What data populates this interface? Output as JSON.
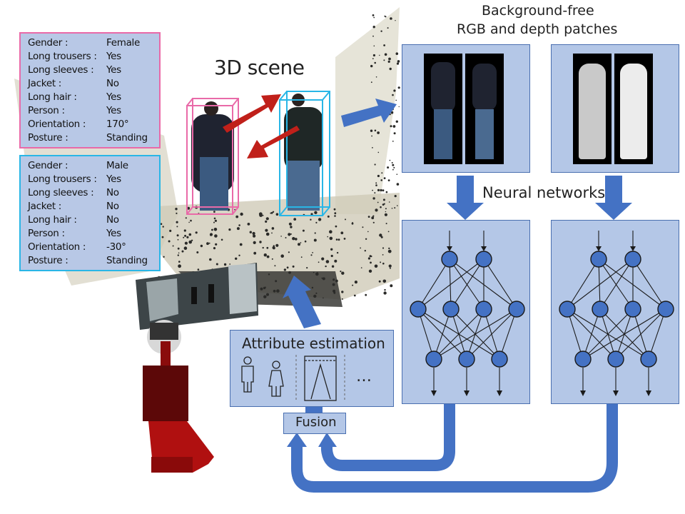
{
  "scene_title": "3D scene",
  "patches_title": {
    "line1": "Background-free",
    "line2": "RGB and depth patches"
  },
  "neural_label": "Neural networks",
  "attribute_box": {
    "title": "Attribute estimation",
    "ellipsis": "…"
  },
  "fusion_label": "Fusion",
  "person_pink": {
    "border_color": "#e96aa8",
    "rows": [
      {
        "key": "Gender :",
        "value": "Female"
      },
      {
        "key": "Long trousers :",
        "value": "Yes"
      },
      {
        "key": "Long sleeves :",
        "value": "Yes"
      },
      {
        "key": "Jacket :",
        "value": "No"
      },
      {
        "key": "Long hair :",
        "value": "Yes"
      },
      {
        "key": "Person :",
        "value": "Yes"
      },
      {
        "key": "Orientation :",
        "value": "170°"
      },
      {
        "key": "Posture :",
        "value": "Standing"
      }
    ]
  },
  "person_blue": {
    "border_color": "#29b6e6",
    "rows": [
      {
        "key": "Gender :",
        "value": "Male"
      },
      {
        "key": "Long trousers :",
        "value": "Yes"
      },
      {
        "key": "Long sleeves :",
        "value": "No"
      },
      {
        "key": "Jacket :",
        "value": "No"
      },
      {
        "key": "Long hair :",
        "value": "No"
      },
      {
        "key": "Person :",
        "value": "Yes"
      },
      {
        "key": "Orientation :",
        "value": "-30°"
      },
      {
        "key": "Posture :",
        "value": "Standing"
      }
    ]
  },
  "colors": {
    "arrow": "#4472c4",
    "panel": "#b4c7e7",
    "node": "#4472c4",
    "robot": "#b01010"
  }
}
